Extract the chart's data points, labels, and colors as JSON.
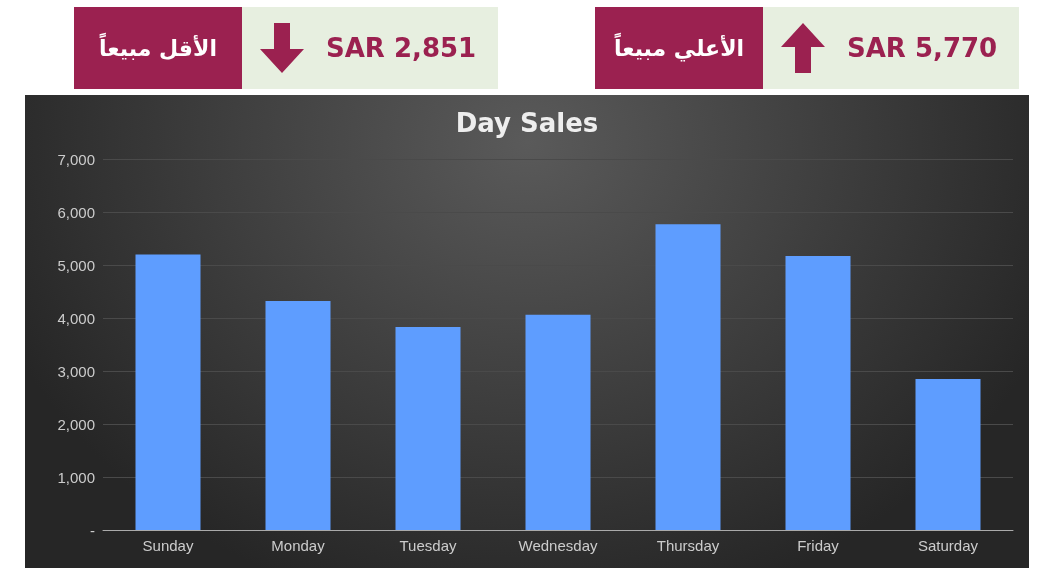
{
  "chart_data": {
    "type": "bar",
    "title": "Day Sales",
    "categories": [
      "Sunday",
      "Monday",
      "Tuesday",
      "Wednesday",
      "Thursday",
      "Friday",
      "Saturday"
    ],
    "values": [
      5200,
      4320,
      3830,
      4060,
      5770,
      5170,
      2851
    ],
    "color": "#5e9dff",
    "ylim": [
      0,
      7000
    ],
    "yticks": [
      {
        "value": 0,
        "label": "-"
      },
      {
        "value": 1000,
        "label": "1,000"
      },
      {
        "value": 2000,
        "label": "2,000"
      },
      {
        "value": 3000,
        "label": "3,000"
      },
      {
        "value": 4000,
        "label": "4,000"
      },
      {
        "value": 5000,
        "label": "5,000"
      },
      {
        "value": 6000,
        "label": "6,000"
      },
      {
        "value": 7000,
        "label": "7,000"
      }
    ],
    "grid": "y",
    "annotations": [
      "الأقل مبيعاً",
      "SAR 2,851",
      "الأعلي مبيعاً",
      "SAR 5,770"
    ]
  }
}
